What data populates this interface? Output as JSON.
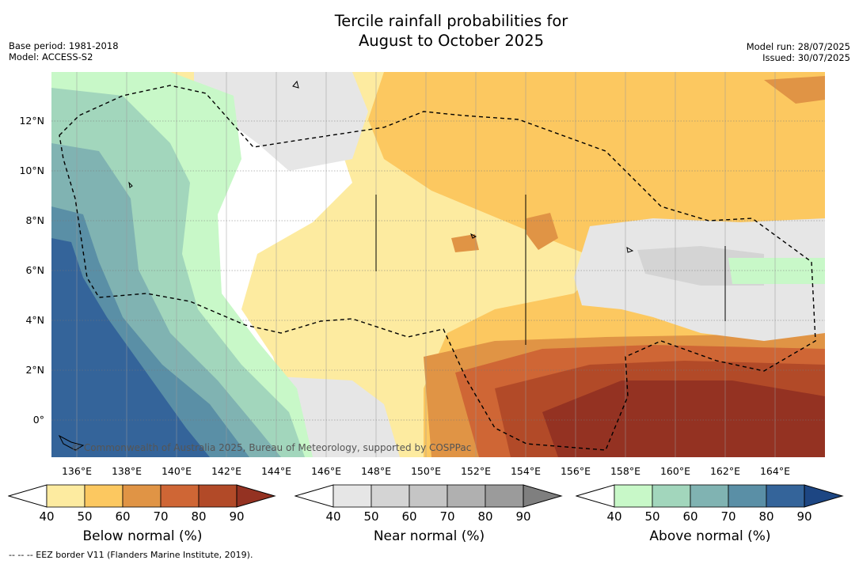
{
  "title_line1": "Tercile rainfall probabilities for",
  "title_line2": "August to October 2025",
  "meta": {
    "base_period": "Base period: 1981-2018",
    "model": "Model: ACCESS-S2",
    "model_run": "Model run: 28/07/2025",
    "issued": "Issued: 30/07/2025"
  },
  "map": {
    "lat_labels": [
      "12°N",
      "10°N",
      "8°N",
      "6°N",
      "4°N",
      "2°N",
      "0°"
    ],
    "lon_labels": [
      "136°E",
      "138°E",
      "140°E",
      "142°E",
      "144°E",
      "146°E",
      "148°E",
      "150°E",
      "152°E",
      "154°E",
      "156°E",
      "158°E",
      "160°E",
      "162°E",
      "164°E"
    ],
    "copyright": "© Commonwealth of Australia 2025, Bureau of Meteorology, supported by COSPPac",
    "extent": {
      "lon": [
        135,
        166
      ],
      "lat": [
        -1.5,
        14
      ]
    }
  },
  "legends": {
    "ticks": [
      "40",
      "50",
      "60",
      "70",
      "80",
      "90"
    ],
    "below": {
      "title": "Below normal (%)",
      "colors": [
        "#ffffff",
        "#fdeba0",
        "#fcc860",
        "#e09445",
        "#cf6635",
        "#b24a28",
        "#943222"
      ]
    },
    "near": {
      "title": "Near normal (%)",
      "colors": [
        "#ffffff",
        "#e6e6e6",
        "#d4d4d4",
        "#c5c5c5",
        "#b0b0b0",
        "#9b9b9b",
        "#7f7f7f"
      ]
    },
    "above": {
      "title": "Above normal (%)",
      "colors": [
        "#ffffff",
        "#c8f8c8",
        "#a2d6bc",
        "#80b3b2",
        "#5a8fa6",
        "#34649a",
        "#1d4683"
      ]
    }
  },
  "footer": "--  --  -- EEZ border V11 (Flanders Marine Institute, 2019)."
}
